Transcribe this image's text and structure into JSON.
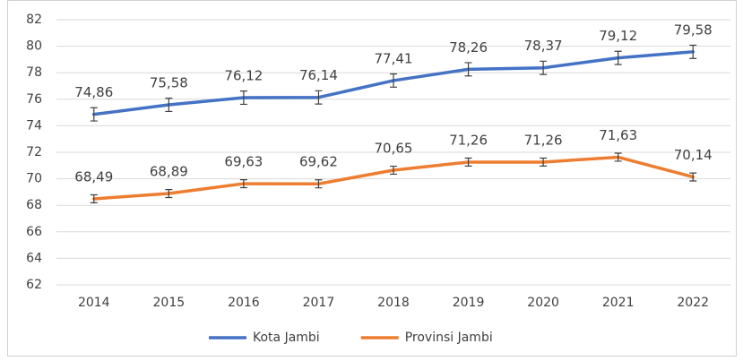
{
  "chart_data": {
    "type": "line",
    "categories": [
      "2014",
      "2015",
      "2016",
      "2017",
      "2018",
      "2019",
      "2020",
      "2021",
      "2022"
    ],
    "series": [
      {
        "name": "Kota Jambi",
        "color": "#4472c4",
        "values": [
          74.86,
          75.58,
          76.12,
          76.14,
          77.41,
          78.26,
          78.37,
          79.12,
          79.58
        ],
        "value_labels": [
          "74,86",
          "75,58",
          "76,12",
          "76,14",
          "77,41",
          "78,26",
          "78,37",
          "79,12",
          "79,58"
        ],
        "errors": [
          0.5,
          0.5,
          0.5,
          0.5,
          0.5,
          0.5,
          0.5,
          0.5,
          0.5
        ]
      },
      {
        "name": "Provinsi Jambi",
        "color": "#ed7d31",
        "values": [
          68.49,
          68.89,
          69.63,
          69.62,
          70.65,
          71.26,
          71.26,
          71.63,
          70.14
        ],
        "value_labels": [
          "68,49",
          "68,89",
          "69,63",
          "69,62",
          "70,65",
          "71,26",
          "71,26",
          "71,63",
          "70,14"
        ],
        "errors": [
          0.3,
          0.3,
          0.3,
          0.3,
          0.3,
          0.3,
          0.3,
          0.3,
          0.3
        ]
      }
    ],
    "ylim": [
      62,
      82
    ],
    "yticks": [
      62,
      64,
      66,
      68,
      70,
      72,
      74,
      76,
      78,
      80,
      82
    ],
    "grid": true,
    "legend": "bottom"
  }
}
